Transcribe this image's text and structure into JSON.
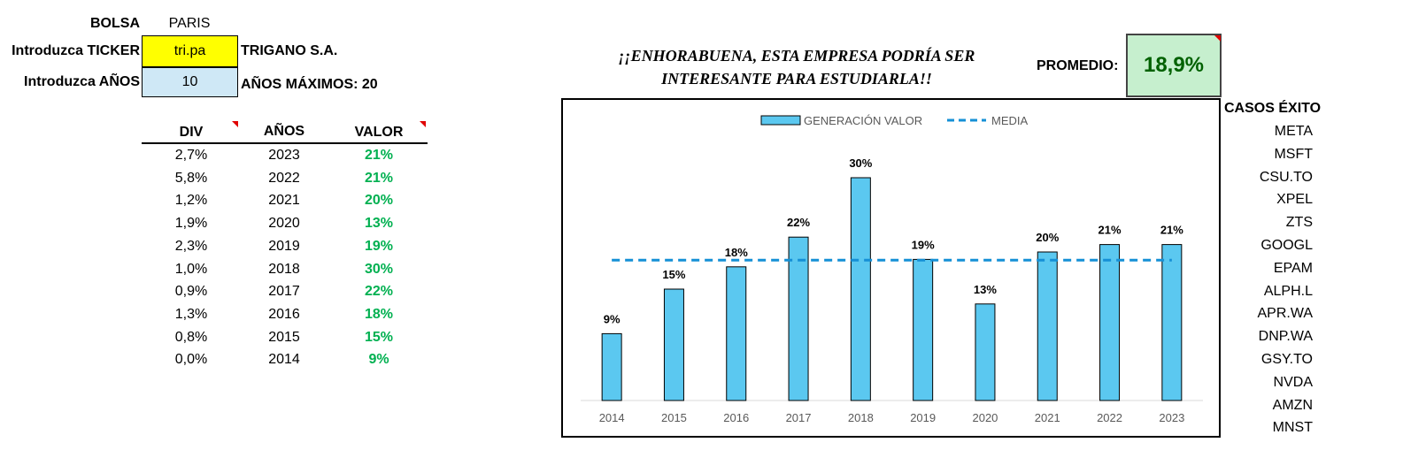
{
  "inputs": {
    "bolsa_label": "BOLSA",
    "bolsa_value": "PARIS",
    "ticker_label": "Introduzca TICKER",
    "ticker_value": "tri.pa",
    "company_name": "TRIGANO S.A.",
    "years_label": "Introduzca AÑOS",
    "years_value": "10",
    "max_years_label": "AÑOS MÁXIMOS: 20"
  },
  "table": {
    "headers": [
      "DIV",
      "AÑOS",
      "VALOR"
    ],
    "rows": [
      {
        "div": "2,7%",
        "year": "2023",
        "value": "21%"
      },
      {
        "div": "5,8%",
        "year": "2022",
        "value": "21%"
      },
      {
        "div": "1,2%",
        "year": "2021",
        "value": "20%"
      },
      {
        "div": "1,9%",
        "year": "2020",
        "value": "13%"
      },
      {
        "div": "2,3%",
        "year": "2019",
        "value": "19%"
      },
      {
        "div": "1,0%",
        "year": "2018",
        "value": "30%"
      },
      {
        "div": "0,9%",
        "year": "2017",
        "value": "22%"
      },
      {
        "div": "1,3%",
        "year": "2016",
        "value": "18%"
      },
      {
        "div": "0,8%",
        "year": "2015",
        "value": "15%"
      },
      {
        "div": "0,0%",
        "year": "2014",
        "value": "9%"
      }
    ]
  },
  "headline": {
    "line1": "¡¡ENHORABUENA, ESTA EMPRESA PODRÍA SER",
    "line2": "INTERESANTE PARA ESTUDIARLA!!"
  },
  "promedio": {
    "label": "PROMEDIO:",
    "value": "18,9%",
    "bg_color": "#c6efce",
    "text_color": "#006100"
  },
  "success_cases": {
    "title": "CASOS ÉXITO",
    "items": [
      "META",
      "MSFT",
      "CSU.TO",
      "XPEL",
      "ZTS",
      "GOOGL",
      "EPAM",
      "ALPH.L",
      "APR.WA",
      "DNP.WA",
      "GSY.TO",
      "NVDA",
      "AMZN",
      "MNST"
    ]
  },
  "colors": {
    "bar": "#5bc8f0",
    "mean_line": "#1590d6",
    "value_green": "#00b050",
    "comment_marker": "#e00000"
  },
  "chart_data": {
    "type": "bar",
    "categories": [
      "2014",
      "2015",
      "2016",
      "2017",
      "2018",
      "2019",
      "2020",
      "2021",
      "2022",
      "2023"
    ],
    "series": [
      {
        "name": "GENERACIÓN VALOR",
        "values": [
          9,
          15,
          18,
          22,
          30,
          19,
          13,
          20,
          21,
          21
        ]
      },
      {
        "name": "MEDIA",
        "type": "line",
        "style": "dashed",
        "values": [
          18.9,
          18.9,
          18.9,
          18.9,
          18.9,
          18.9,
          18.9,
          18.9,
          18.9,
          18.9
        ]
      }
    ],
    "data_labels": [
      "9%",
      "15%",
      "18%",
      "22%",
      "30%",
      "19%",
      "13%",
      "20%",
      "21%",
      "21%"
    ],
    "ylim": [
      0,
      35
    ],
    "grid": false,
    "legend": "top-center",
    "title": "",
    "xlabel": "",
    "ylabel": ""
  }
}
